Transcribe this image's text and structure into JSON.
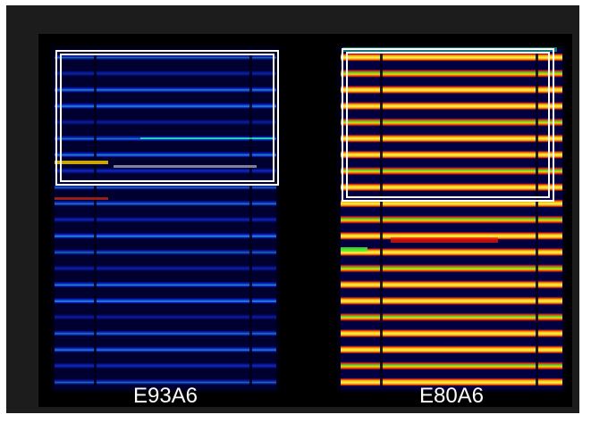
{
  "panels": [
    {
      "label": "E93A6",
      "style": "low"
    },
    {
      "label": "E80A6",
      "style": "high"
    }
  ],
  "colors": {
    "background": "#000000",
    "frame": "#1c1c1c",
    "label": "#ffffff",
    "box": "#ffffff"
  }
}
